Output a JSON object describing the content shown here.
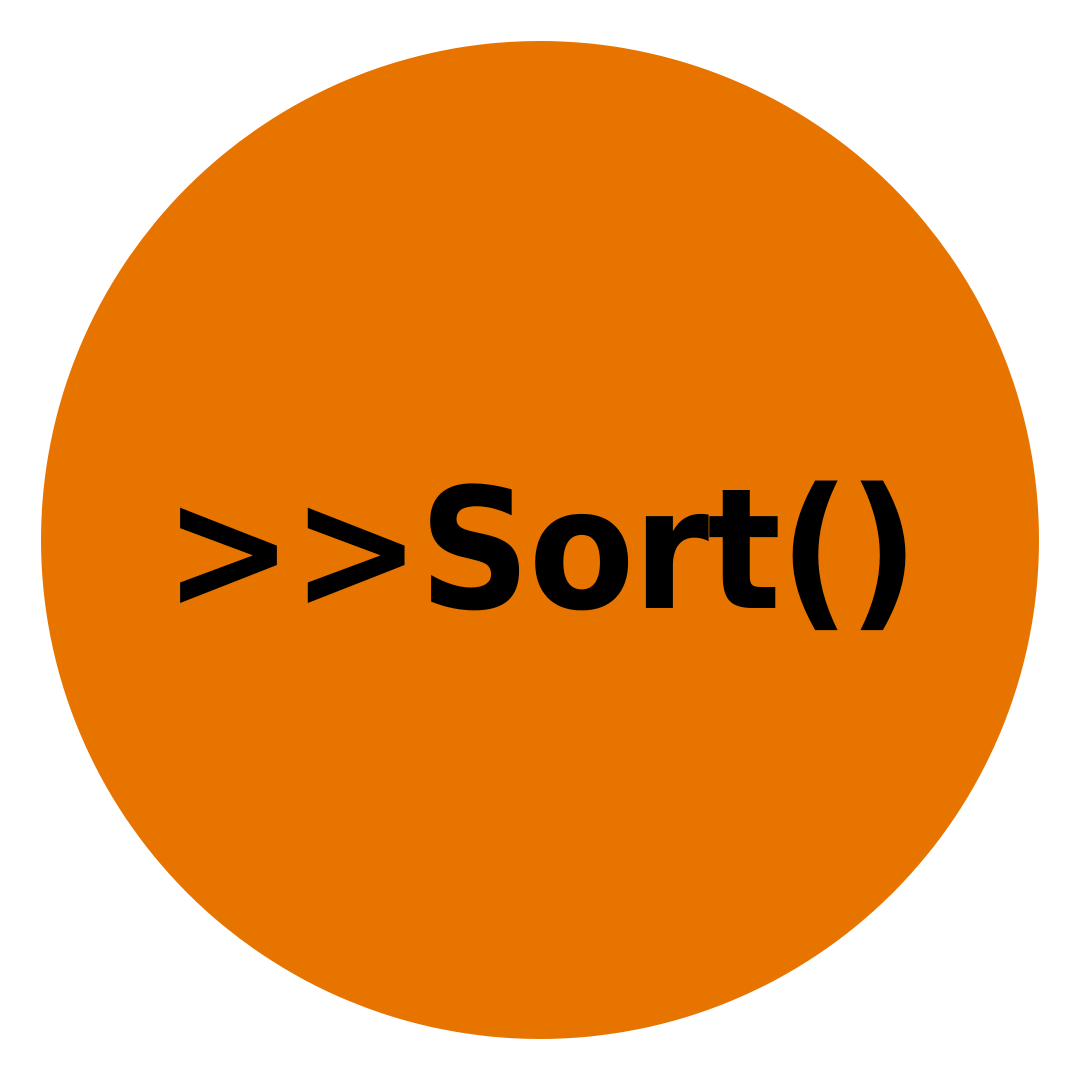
{
  "logo": {
    "text": ">>Sort()",
    "background_color": "#e87400",
    "text_color": "#000000",
    "page_color": "#ffffff"
  }
}
